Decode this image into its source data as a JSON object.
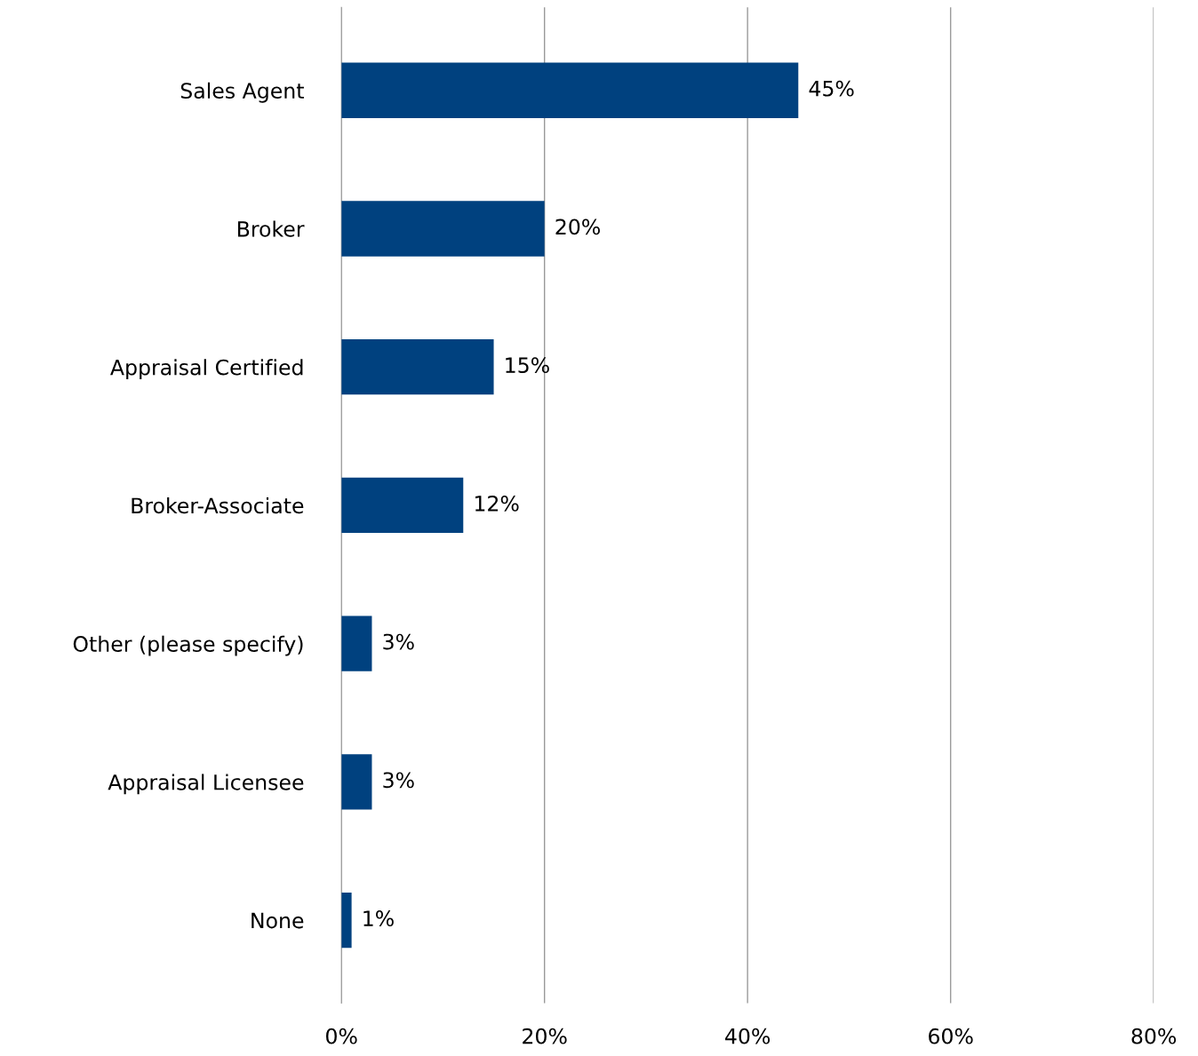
{
  "chart_data": {
    "type": "bar",
    "orientation": "horizontal",
    "categories": [
      "Sales Agent",
      "Broker",
      "Appraisal Certified",
      "Broker-Associate",
      "Other (please specify)",
      "Appraisal Licensee",
      "None"
    ],
    "values": [
      45,
      20,
      15,
      12,
      3,
      3,
      1
    ],
    "value_labels": [
      "45%",
      "20%",
      "15%",
      "12%",
      "3%",
      "3%",
      "1%"
    ],
    "color": "#00417f",
    "xlim": [
      0,
      80
    ],
    "xticks": [
      {
        "value": 0,
        "label": "0%"
      },
      {
        "value": 20,
        "label": "20%"
      },
      {
        "value": 40,
        "label": "40%"
      },
      {
        "value": 60,
        "label": "60%"
      },
      {
        "value": 80,
        "label": "80%"
      }
    ],
    "grid": "x",
    "legend": false
  }
}
